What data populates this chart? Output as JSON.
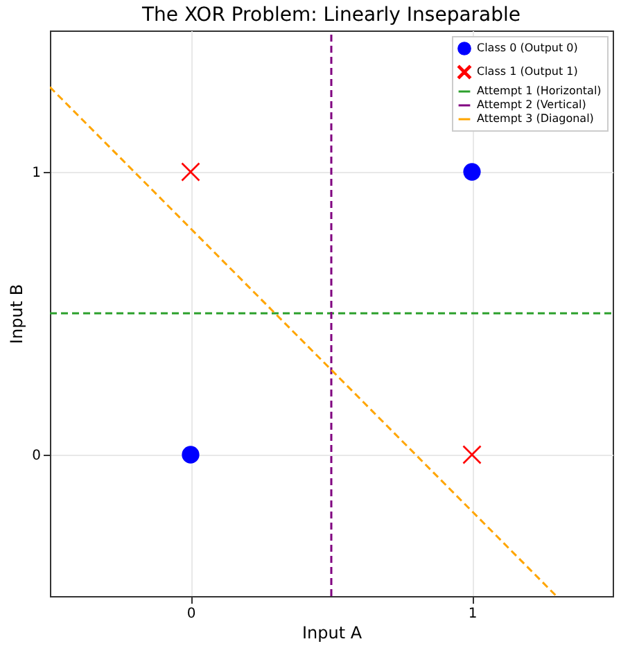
{
  "chart_data": {
    "type": "scatter",
    "title": "The XOR Problem: Linearly Inseparable",
    "xlabel": "Input A",
    "ylabel": "Input B",
    "xlim": [
      -0.5,
      1.5
    ],
    "ylim": [
      -0.5,
      1.5
    ],
    "xticks": [
      0,
      1
    ],
    "yticks": [
      0,
      1
    ],
    "grid": true,
    "legend": "top right",
    "series": [
      {
        "name": "Class 0 (Output 0)",
        "type": "scatter",
        "marker": "circle",
        "color": "#0000ff",
        "x": [
          0,
          1
        ],
        "values": [
          0,
          1
        ]
      },
      {
        "name": "Class 1 (Output 1)",
        "type": "scatter",
        "marker": "cross",
        "color": "#ff0000",
        "x": [
          0,
          1
        ],
        "values": [
          1,
          0
        ]
      },
      {
        "name": "Attempt 1 (Horizontal)",
        "type": "line",
        "line_style": "dashed",
        "color": "#2ca02c",
        "x": [
          -0.5,
          1.5
        ],
        "values": [
          0.5,
          0.5
        ]
      },
      {
        "name": "Attempt 2 (Vertical)",
        "type": "line",
        "line_style": "dashed",
        "color": "#800080",
        "x": [
          0.5,
          0.5
        ],
        "values": [
          -0.5,
          1.5
        ]
      },
      {
        "name": "Attempt 3 (Diagonal)",
        "type": "line",
        "line_style": "dashed",
        "color": "#ffa500",
        "x": [
          -0.5,
          1.3
        ],
        "values": [
          1.3,
          -0.5
        ]
      }
    ]
  }
}
